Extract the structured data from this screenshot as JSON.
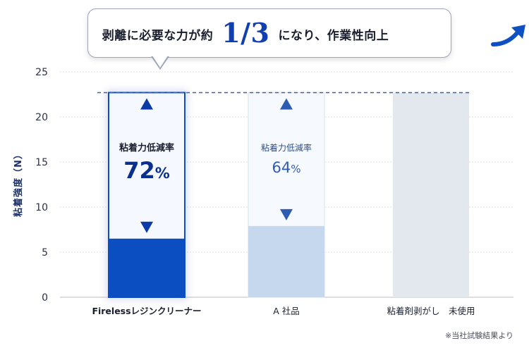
{
  "callout": {
    "prefix": "剥離に必要な力が約",
    "highlight": "1/3",
    "suffix": "になり、作業性向上",
    "arrow_icon": "upward-curved-arrow-icon"
  },
  "footnote": "※当社試験結果より",
  "colors": {
    "primary": "#0a4ec2",
    "primary_light": "#c5d8ee",
    "neutral_bar": "#e3e7ee",
    "reference_line": "#3b5ea6"
  },
  "chart_data": {
    "type": "bar",
    "ylabel": "粘着強度（N）",
    "ylim": [
      0,
      25
    ],
    "yticks": [
      0,
      5,
      10,
      15,
      20,
      25
    ],
    "grid": true,
    "reference_value": 22.7,
    "categories": [
      "Firelessレジンクリーナー",
      "A 社品",
      "粘着剤剥がし　未使用"
    ],
    "values": [
      6.5,
      7.9,
      22.7
    ],
    "annotations": [
      {
        "label": "粘着力低減率",
        "value": "72",
        "unit": "%"
      },
      {
        "label": "粘着力低減率",
        "value": "64",
        "unit": "%"
      },
      null
    ]
  }
}
